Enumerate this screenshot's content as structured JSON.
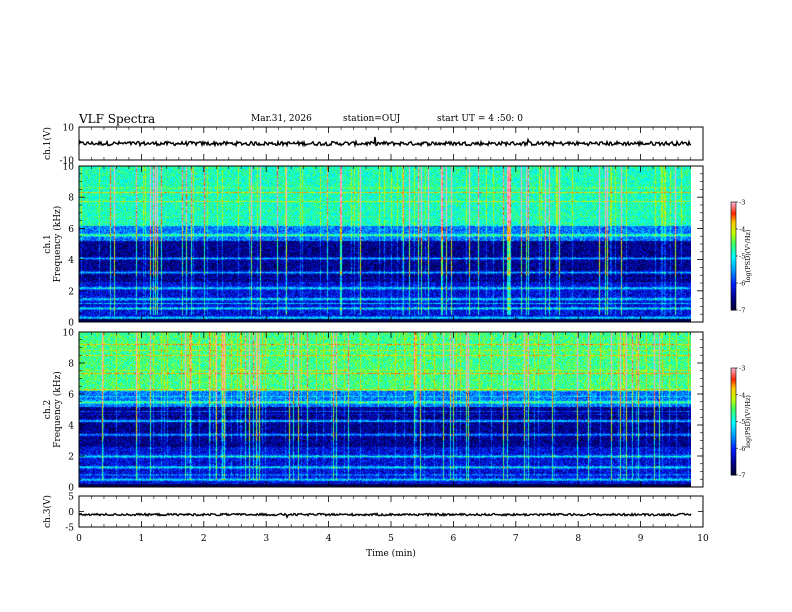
{
  "header": {
    "title": "VLF Spectra",
    "date": "Mar.31, 2026",
    "station": "station=OUJ",
    "start_ut": "start UT =  4 :50: 0"
  },
  "colors": {
    "wave": "#000000",
    "cmap": [
      "#000080",
      "#0000ff",
      "#00a0ff",
      "#00ffff",
      "#40ff60",
      "#ffff00",
      "#ff8000",
      "#ff0000",
      "#ff80a0",
      "#ffffff"
    ]
  },
  "chart_data": [
    {
      "type": "line",
      "name": "ch1-waveform",
      "ylabel": "ch.1(V)",
      "ylim": [
        -10,
        10
      ],
      "yticks": [
        "10",
        "-10"
      ],
      "xlim": [
        0,
        10
      ],
      "level": 0,
      "noise_amplitude": 1.2
    },
    {
      "type": "heatmap",
      "name": "ch1-spectrogram",
      "ylabel_line1": "ch.1",
      "ylabel_line2": "Frequency (kHz)",
      "xlim": [
        0,
        10
      ],
      "ylim": [
        0,
        10
      ],
      "yticks": [
        "0",
        "2",
        "4",
        "6",
        "8",
        "10"
      ],
      "colorbar": {
        "label": "log(PSD)(V²/Hz)",
        "range": [
          -7,
          -3
        ],
        "ticks": [
          "-3",
          "-4",
          "-5",
          "-6",
          "-7"
        ]
      },
      "bands_khz": [
        0.3,
        0.9,
        1.5,
        2.2,
        3.2,
        4.1,
        5.6
      ]
    },
    {
      "type": "heatmap",
      "name": "ch2-spectrogram",
      "ylabel_line1": "ch.2",
      "ylabel_line2": "Frequency (kHz)",
      "xlim": [
        0,
        10
      ],
      "ylim": [
        0,
        10
      ],
      "yticks": [
        "0",
        "2",
        "4",
        "6",
        "8",
        "10"
      ],
      "colorbar": {
        "label": "log(PSD)(V²/Hz)",
        "range": [
          -7,
          -3
        ],
        "ticks": [
          "-3",
          "-4",
          "-5",
          "-6",
          "-7"
        ]
      },
      "bands_khz": [
        0.5,
        1.3,
        2.0,
        3.4,
        4.3,
        5.5
      ]
    },
    {
      "type": "line",
      "name": "ch3-waveform",
      "ylabel": "ch.3(V)",
      "ylim": [
        -5,
        5
      ],
      "yticks": [
        "5",
        "0",
        "-5"
      ],
      "xlim": [
        0,
        10
      ],
      "level": -1.0,
      "noise_amplitude": 0.35
    }
  ],
  "xaxis": {
    "label": "Time (min)",
    "range": [
      0,
      10
    ],
    "ticks": [
      "0",
      "1",
      "2",
      "3",
      "4",
      "5",
      "6",
      "7",
      "8",
      "9",
      "10"
    ],
    "data_end_min": 9.8
  }
}
